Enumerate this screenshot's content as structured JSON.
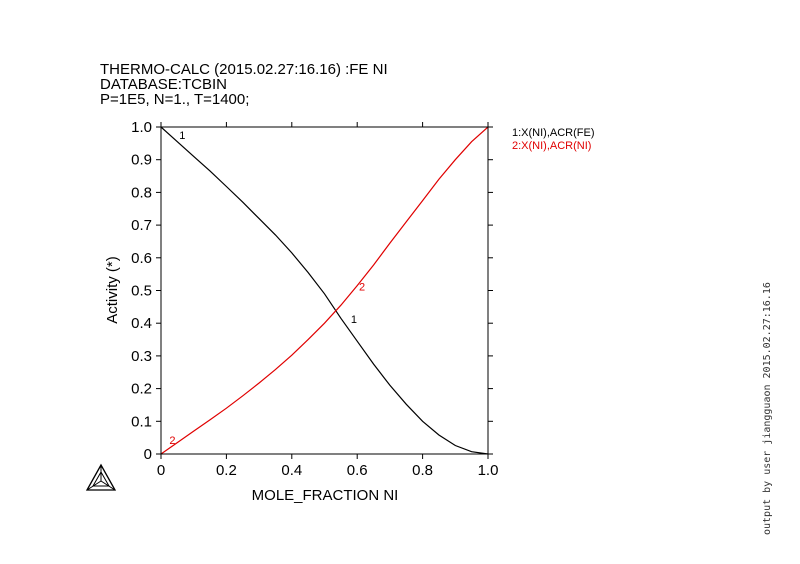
{
  "header": {
    "line1": "THERMO-CALC (2015.02.27:16.16) :FE NI",
    "line2": "DATABASE:TCBIN",
    "line3": "P=1E5, N=1., T=1400;"
  },
  "side_note": "output by user jiangguaon 2015.02.27:16.16",
  "colors": {
    "series1": "#000000",
    "series2": "#e00000"
  },
  "chart_data": {
    "type": "line",
    "xlabel": "MOLE_FRACTION NI",
    "ylabel": "Activity (*)",
    "xlim": [
      0,
      1
    ],
    "ylim": [
      0,
      1
    ],
    "xticks": [
      "0",
      "0.2",
      "0.4",
      "0.6",
      "0.8",
      "1.0"
    ],
    "yticks": [
      "0",
      "0.1",
      "0.2",
      "0.3",
      "0.4",
      "0.5",
      "0.6",
      "0.7",
      "0.8",
      "0.9",
      "1.0"
    ],
    "legend_position": "right",
    "series": [
      {
        "name": "1:X(NI),ACR(FE)",
        "label": "1",
        "label_points": [
          [
            0.065,
            0.963
          ],
          [
            0.59,
            0.4
          ]
        ],
        "x": [
          0,
          0.05,
          0.1,
          0.15,
          0.2,
          0.25,
          0.3,
          0.35,
          0.4,
          0.45,
          0.5,
          0.55,
          0.6,
          0.65,
          0.7,
          0.75,
          0.8,
          0.85,
          0.9,
          0.95,
          1.0
        ],
        "values": [
          1.0,
          0.955,
          0.91,
          0.865,
          0.818,
          0.77,
          0.72,
          0.67,
          0.615,
          0.555,
          0.49,
          0.415,
          0.345,
          0.275,
          0.21,
          0.152,
          0.1,
          0.058,
          0.026,
          0.007,
          0.0
        ]
      },
      {
        "name": "2:X(NI),ACR(NI)",
        "label": "2",
        "label_points": [
          [
            0.035,
            0.03
          ],
          [
            0.615,
            0.5
          ]
        ],
        "x": [
          0,
          0.05,
          0.1,
          0.15,
          0.2,
          0.25,
          0.3,
          0.35,
          0.4,
          0.45,
          0.5,
          0.55,
          0.6,
          0.65,
          0.7,
          0.75,
          0.8,
          0.85,
          0.9,
          0.95,
          1.0
        ],
        "values": [
          0.0,
          0.035,
          0.07,
          0.105,
          0.14,
          0.178,
          0.217,
          0.258,
          0.302,
          0.35,
          0.4,
          0.455,
          0.515,
          0.578,
          0.645,
          0.71,
          0.775,
          0.84,
          0.9,
          0.955,
          1.0
        ]
      }
    ]
  }
}
